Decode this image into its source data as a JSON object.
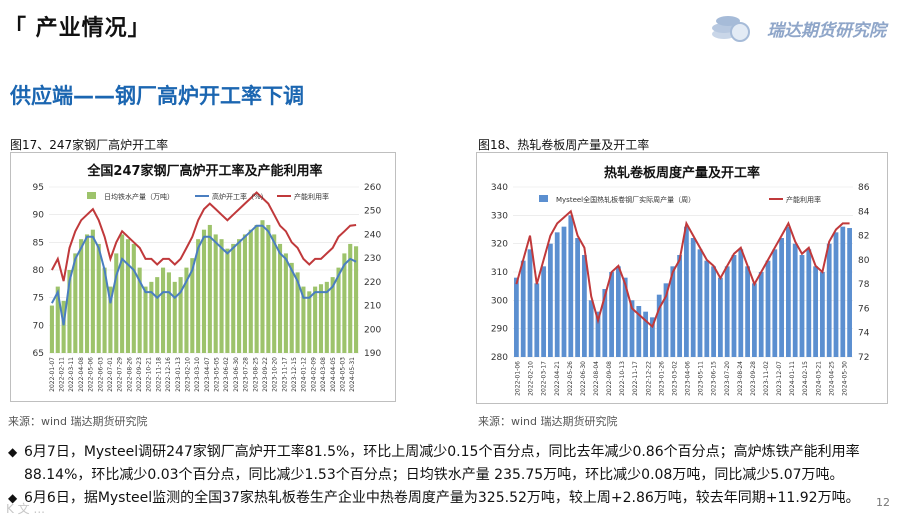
{
  "header": {
    "title": "「 产业情况」",
    "logo_text": "瑞达期货研究院"
  },
  "section_title": "供应端——钢厂高炉开工率下调",
  "figures": [
    {
      "caption": "图17、247家钢厂高炉开工率",
      "source": "来源：wind   瑞达期货研究院"
    },
    {
      "caption": "图18、热轧卷板周产量及开工率",
      "source": "来源：wind   瑞达期货研究院"
    }
  ],
  "bullets": [
    "6月7日，Mysteel调研247家钢厂高炉开工率81.5%，环比上周减少0.15个百分点，同比去年减少0.86个百分点；高炉炼铁产能利用率88.14%，环比减少0.03个百分点，同比减少1.53个百分点；日均铁水产量 235.75万吨，环比减少0.08万吨，同比减少5.07万吨。",
    "6月6日，据Mysteel监测的全国37家热轧板卷生产企业中热卷周度产量为325.52万吨，较上周+2.86万吨，较去年同期+11.92万吨。"
  ],
  "page_number": "12",
  "watermark": "K 文 ...",
  "chart_data": [
    {
      "type": "bar",
      "title": "全国247家钢厂高炉开工率及产能利用率",
      "legend": [
        "日均铁水产量（万吨）",
        "高炉开工率（%）",
        "产能利用率"
      ],
      "colors": {
        "bars": "#9dc36b",
        "line1": "#4a7ec0",
        "line2": "#c0393b"
      },
      "y_left": {
        "min": 65,
        "max": 95,
        "ticks": [
          "95",
          "90",
          "85",
          "80",
          "75",
          "70",
          "65"
        ]
      },
      "y_right": {
        "min": 190,
        "max": 260,
        "ticks": [
          "260",
          "250",
          "240",
          "230",
          "220",
          "210",
          "200",
          "190"
        ]
      },
      "x_ticks": [
        "2022-01-07",
        "2022-02-11",
        "2022-03-11",
        "2022-04-08",
        "2022-05-06",
        "2022-06-03",
        "2022-07-01",
        "2022-07-29",
        "2022-08-26",
        "2022-09-23",
        "2022-10-21",
        "2022-11-18",
        "2022-12-16",
        "2023-01-13",
        "2023-02-10",
        "2023-03-10",
        "2023-04-07",
        "2023-05-05",
        "2023-06-02",
        "2023-06-30",
        "2023-07-28",
        "2023-08-25",
        "2023-09-22",
        "2023-10-20",
        "2023-11-17",
        "2023-12-15",
        "2024-01-12",
        "2024-02-09",
        "2024-03-08",
        "2024-04-05",
        "2024-05-03",
        "2024-05-31"
      ],
      "series": [
        {
          "name": "日均铁水产量（万吨）",
          "axis": "right",
          "values": [
            210,
            218,
            212,
            225,
            232,
            238,
            240,
            242,
            236,
            226,
            218,
            232,
            240,
            238,
            236,
            226,
            218,
            220,
            222,
            226,
            224,
            220,
            222,
            226,
            230,
            238,
            242,
            244,
            240,
            238,
            234,
            236,
            238,
            240,
            242,
            244,
            246,
            244,
            240,
            236,
            232,
            228,
            224,
            218,
            216,
            218,
            219,
            220,
            222,
            226,
            232,
            236,
            235
          ]
        },
        {
          "name": "高炉开工率（%）",
          "axis": "left",
          "values": [
            74,
            76,
            70,
            78,
            82,
            84,
            86,
            86,
            84,
            80,
            74,
            79,
            82,
            81,
            80,
            78,
            76,
            76,
            75,
            76,
            76,
            75,
            76,
            78,
            80,
            84,
            86,
            86,
            85,
            84,
            83,
            84,
            85,
            86,
            87,
            88,
            88,
            87,
            85,
            83,
            82,
            80,
            78,
            75,
            75,
            76,
            76,
            76,
            77,
            79,
            81,
            82,
            81.5
          ]
        },
        {
          "name": "产能利用率",
          "axis": "left",
          "values": [
            80,
            82,
            78,
            84,
            87,
            89,
            90,
            91,
            89,
            86,
            82,
            85,
            87,
            86,
            85,
            84,
            82,
            82,
            81,
            82,
            82,
            81,
            82,
            84,
            86,
            89,
            91,
            92,
            91,
            90,
            89,
            90,
            91,
            92,
            93,
            94,
            93,
            92,
            90,
            88,
            87,
            85,
            84,
            82,
            81,
            82,
            82,
            83,
            84,
            86,
            87,
            88,
            88.14
          ]
        }
      ]
    },
    {
      "type": "bar",
      "title": "热轧卷板周度产量及开工率",
      "legend": [
        "Mysteel全国热轧板卷钢厂实际周产量（周）",
        "产能利用率"
      ],
      "colors": {
        "bars": "#5b8fd0",
        "line": "#c0393b"
      },
      "y_left": {
        "min": 280,
        "max": 340,
        "ticks": [
          "340",
          "330",
          "320",
          "310",
          "300",
          "290",
          "280"
        ]
      },
      "y_right": {
        "min": 72,
        "max": 86,
        "ticks": [
          "86",
          "84",
          "82",
          "80",
          "78",
          "76",
          "74",
          "72"
        ]
      },
      "x_ticks": [
        "2022-01-06",
        "2022-02-10",
        "2022-03-17",
        "2022-04-21",
        "2022-05-26",
        "2022-06-30",
        "2022-08-04",
        "2022-09-08",
        "2022-10-13",
        "2022-11-17",
        "2022-12-22",
        "2023-01-26",
        "2023-03-02",
        "2023-04-06",
        "2023-05-11",
        "2023-06-15",
        "2023-07-20",
        "2023-08-24",
        "2023-09-28",
        "2023-11-02",
        "2023-12-07",
        "2024-01-11",
        "2024-02-15",
        "2024-03-21",
        "2024-04-25",
        "2024-05-30"
      ],
      "series": [
        {
          "name": "Mysteel全国热轧板卷钢厂实际周产量（周）",
          "axis": "left",
          "values": [
            308,
            314,
            318,
            306,
            312,
            320,
            324,
            326,
            330,
            322,
            316,
            300,
            296,
            304,
            310,
            312,
            308,
            300,
            298,
            296,
            294,
            302,
            306,
            312,
            316,
            326,
            322,
            318,
            314,
            312,
            308,
            312,
            316,
            318,
            312,
            306,
            310,
            314,
            318,
            322,
            326,
            320,
            316,
            318,
            312,
            310,
            320,
            324,
            326,
            325.52
          ]
        },
        {
          "name": "产能利用率",
          "axis": "right",
          "values": [
            78,
            80,
            82,
            78,
            80,
            82,
            83,
            83.5,
            84,
            82,
            81,
            77,
            75,
            77,
            79,
            79.5,
            78,
            76,
            75.5,
            75,
            74.5,
            76,
            77,
            79,
            80,
            83,
            82,
            81,
            80,
            79.5,
            78.5,
            79.5,
            80.5,
            81,
            79.5,
            78,
            79,
            80,
            81,
            82,
            83,
            81.5,
            80.5,
            81,
            79.5,
            79,
            81.5,
            82.5,
            83,
            83
          ]
        }
      ]
    }
  ]
}
